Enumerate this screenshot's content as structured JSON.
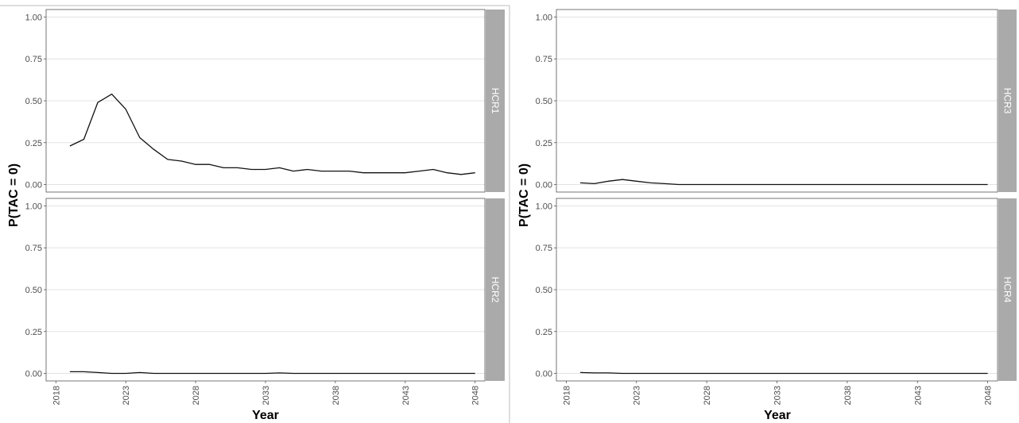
{
  "chart_data": [
    {
      "type": "line",
      "facet": "HCR1",
      "ylabel": "P(TAC = 0)",
      "xlabel": "",
      "ylim": [
        0,
        1
      ],
      "x": [
        2019,
        2020,
        2021,
        2022,
        2023,
        2024,
        2025,
        2026,
        2027,
        2028,
        2029,
        2030,
        2031,
        2032,
        2033,
        2034,
        2035,
        2036,
        2037,
        2038,
        2039,
        2040,
        2041,
        2042,
        2043,
        2044,
        2045,
        2046,
        2047,
        2048
      ],
      "values": [
        0.23,
        0.27,
        0.49,
        0.54,
        0.45,
        0.28,
        0.21,
        0.15,
        0.14,
        0.12,
        0.12,
        0.1,
        0.1,
        0.09,
        0.09,
        0.1,
        0.08,
        0.09,
        0.08,
        0.08,
        0.08,
        0.07,
        0.07,
        0.07,
        0.07,
        0.08,
        0.09,
        0.07,
        0.06,
        0.07
      ]
    },
    {
      "type": "line",
      "facet": "HCR2",
      "ylabel": "",
      "xlabel": "Year",
      "ylim": [
        0,
        1
      ],
      "x": [
        2019,
        2020,
        2021,
        2022,
        2023,
        2024,
        2025,
        2026,
        2027,
        2028,
        2029,
        2030,
        2031,
        2032,
        2033,
        2034,
        2035,
        2036,
        2037,
        2038,
        2039,
        2040,
        2041,
        2042,
        2043,
        2044,
        2045,
        2046,
        2047,
        2048
      ],
      "values": [
        0.01,
        0.01,
        0.005,
        0.0,
        0.0,
        0.005,
        0.0,
        0.0,
        0.0,
        0.0,
        0.0,
        0.0,
        0.0,
        0.0,
        0.0,
        0.003,
        0.0,
        0.0,
        0.0,
        0.0,
        0.0,
        0.0,
        0.0,
        0.0,
        0.0,
        0.0,
        0.0,
        0.0,
        0.0,
        0.0
      ]
    },
    {
      "type": "line",
      "facet": "HCR3",
      "ylabel": "P(TAC = 0)",
      "xlabel": "",
      "ylim": [
        0,
        1
      ],
      "x": [
        2019,
        2020,
        2021,
        2022,
        2023,
        2024,
        2025,
        2026,
        2027,
        2028,
        2029,
        2030,
        2031,
        2032,
        2033,
        2034,
        2035,
        2036,
        2037,
        2038,
        2039,
        2040,
        2041,
        2042,
        2043,
        2044,
        2045,
        2046,
        2047,
        2048
      ],
      "values": [
        0.01,
        0.005,
        0.02,
        0.03,
        0.02,
        0.01,
        0.005,
        0.0,
        0.0,
        0.0,
        0.0,
        0.0,
        0.0,
        0.0,
        0.0,
        0.0,
        0.0,
        0.0,
        0.0,
        0.0,
        0.0,
        0.0,
        0.0,
        0.0,
        0.0,
        0.0,
        0.0,
        0.0,
        0.0,
        0.0
      ]
    },
    {
      "type": "line",
      "facet": "HCR4",
      "ylabel": "",
      "xlabel": "Year",
      "ylim": [
        0,
        1
      ],
      "x": [
        2019,
        2020,
        2021,
        2022,
        2023,
        2024,
        2025,
        2026,
        2027,
        2028,
        2029,
        2030,
        2031,
        2032,
        2033,
        2034,
        2035,
        2036,
        2037,
        2038,
        2039,
        2040,
        2041,
        2042,
        2043,
        2044,
        2045,
        2046,
        2047,
        2048
      ],
      "values": [
        0.005,
        0.003,
        0.003,
        0.0,
        0.0,
        0.0,
        0.0,
        0.0,
        0.0,
        0.0,
        0.0,
        0.0,
        0.0,
        0.0,
        0.0,
        0.0,
        0.0,
        0.0,
        0.0,
        0.0,
        0.0,
        0.0,
        0.0,
        0.0,
        0.0,
        0.0,
        0.0,
        0.0,
        0.0,
        0.0
      ]
    }
  ],
  "axes": {
    "ylabel": "P(TAC = 0)",
    "xlabel": "Year",
    "xlim": [
      2017.3,
      2048.7
    ],
    "ylim_display": [
      -0.045,
      1.045
    ],
    "y_ticks": [
      "0.00",
      "0.25",
      "0.50",
      "0.75",
      "1.00"
    ],
    "x_ticks": [
      "2018",
      "2023",
      "2028",
      "2033",
      "2038",
      "2043",
      "2048"
    ],
    "grid": true
  },
  "colors": {
    "line": "#111111",
    "strip": "#aaaaaa",
    "grid": "#e3e3e3"
  }
}
